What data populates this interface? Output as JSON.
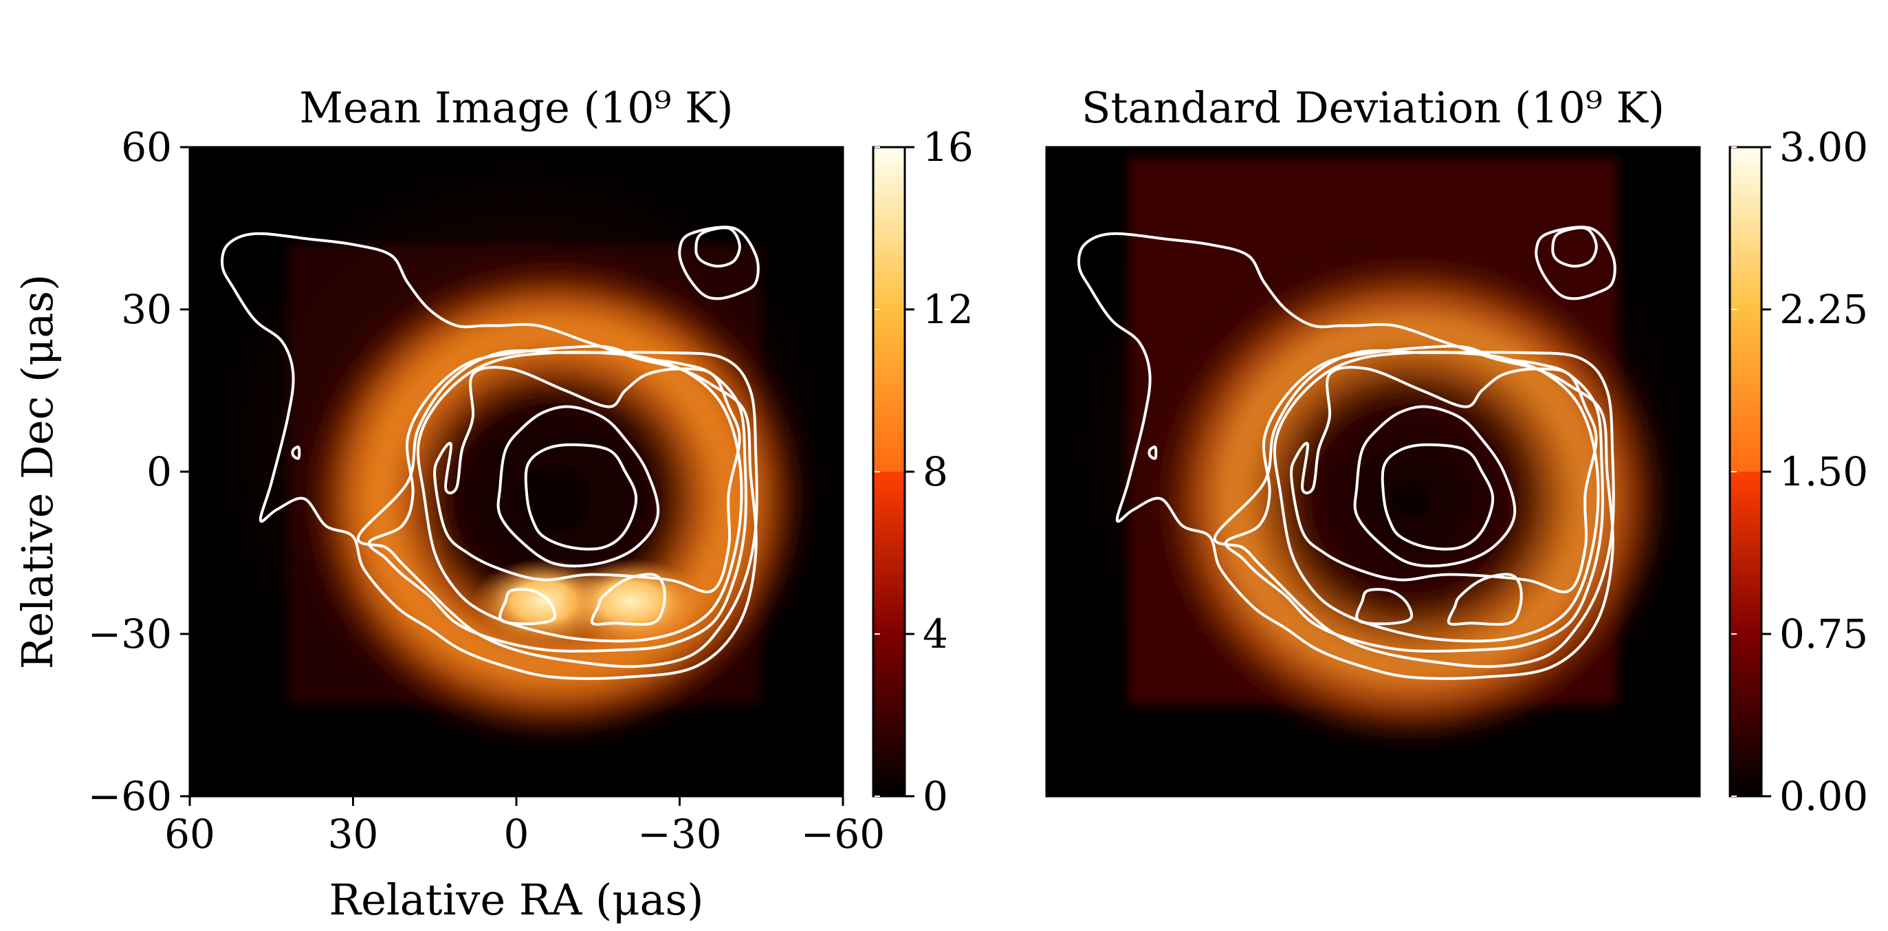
{
  "chart_data": [
    {
      "type": "heatmap",
      "title": "Mean Image (10⁹ K)",
      "xlabel": "Relative RA (μas)",
      "ylabel": "Relative Dec (μas)",
      "xlim": [
        60,
        -60
      ],
      "ylim": [
        -60,
        60
      ],
      "xticks": [
        60,
        30,
        0,
        -30,
        -60
      ],
      "yticks": [
        60,
        30,
        0,
        -30,
        -60
      ],
      "xtick_labels": [
        "60",
        "30",
        "0",
        "−30",
        "−60"
      ],
      "ytick_labels": [
        "60",
        "30",
        "0",
        "−30",
        "−60"
      ],
      "colorbar": {
        "range": [
          0,
          16
        ],
        "ticks": [
          0,
          4,
          8,
          12,
          16
        ],
        "tick_labels": [
          "0",
          "4",
          "8",
          "12",
          "16"
        ],
        "colormap": "afmhot"
      },
      "features": {
        "ring_center": [
          -7,
          -5
        ],
        "ring_radius": 29,
        "ring_peak": 12,
        "hotspots": [
          {
            "ra": -5,
            "dec": -24,
            "value": 15
          },
          {
            "ra": -21,
            "dec": -24,
            "value": 15.5
          }
        ],
        "source_region": {
          "ra": [
            42,
            -45
          ],
          "dec": [
            42,
            -43
          ]
        }
      },
      "contours": [
        {
          "level": 1,
          "points": [
            [
              -2,
              -5
            ],
            [
              -2,
              1
            ],
            [
              -5,
              4
            ],
            [
              -10,
              5
            ],
            [
              -17,
              4
            ],
            [
              -20,
              0
            ],
            [
              -22,
              -5
            ],
            [
              -20,
              -11
            ],
            [
              -16,
              -14
            ],
            [
              -10,
              -14
            ],
            [
              -5,
              -12
            ],
            [
              -3,
              -9
            ]
          ]
        },
        {
          "level": 2,
          "points": [
            [
              3,
              -3
            ],
            [
              2,
              4
            ],
            [
              -1,
              8
            ],
            [
              -5,
              11
            ],
            [
              -10,
              12
            ],
            [
              -16,
              10
            ],
            [
              -20,
              6
            ],
            [
              -24,
              0
            ],
            [
              -26,
              -8
            ],
            [
              -22,
              -14
            ],
            [
              -15,
              -17
            ],
            [
              -7,
              -17
            ],
            [
              -1,
              -13
            ],
            [
              3,
              -8
            ]
          ]
        },
        {
          "level": 3,
          "points": [
            [
              11,
              -3
            ],
            [
              10,
              4
            ],
            [
              8,
              10
            ],
            [
              8,
              18
            ],
            [
              1,
              19
            ],
            [
              -9,
              15
            ],
            [
              -17,
              12
            ],
            [
              -20,
              15
            ],
            [
              -24,
              18
            ],
            [
              -30,
              19
            ],
            [
              -36,
              18
            ],
            [
              -39,
              12
            ],
            [
              -41,
              6
            ],
            [
              -39,
              -4
            ],
            [
              -39,
              -14
            ],
            [
              -36,
              -22
            ],
            [
              -28,
              -20
            ],
            [
              -14,
              -19
            ],
            [
              -5,
              -20
            ],
            [
              3,
              -18
            ],
            [
              9,
              -15
            ],
            [
              13,
              -11
            ],
            [
              15,
              -1
            ],
            [
              14,
              3
            ],
            [
              12,
              5
            ],
            [
              13,
              -3
            ]
          ]
        },
        {
          "level": 4,
          "points": [
            [
              17,
              -4
            ],
            [
              18,
              5
            ],
            [
              15,
              12
            ],
            [
              9,
              18
            ],
            [
              2,
              21
            ],
            [
              -7,
              22
            ],
            [
              -15,
              22
            ],
            [
              -24,
              21
            ],
            [
              -32,
              18
            ],
            [
              -38,
              12
            ],
            [
              -41,
              2
            ],
            [
              -41,
              -10
            ],
            [
              -38,
              -22
            ],
            [
              -33,
              -28
            ],
            [
              -24,
              -31
            ],
            [
              -12,
              -31
            ],
            [
              -2,
              -29
            ],
            [
              6,
              -26
            ],
            [
              11,
              -22
            ],
            [
              15,
              -15
            ]
          ]
        },
        {
          "level": 5,
          "points": [
            [
              27,
              -13
            ],
            [
              21,
              -10
            ],
            [
              19,
              -4
            ],
            [
              20,
              6
            ],
            [
              16,
              14
            ],
            [
              9,
              20
            ],
            [
              0,
              22
            ],
            [
              -10,
              23
            ],
            [
              -17,
              23
            ],
            [
              -23,
              21
            ],
            [
              -30,
              20
            ],
            [
              -36,
              18
            ],
            [
              -41,
              12
            ],
            [
              -42,
              2
            ],
            [
              -42,
              -10
            ],
            [
              -40,
              -20
            ],
            [
              -36,
              -28
            ],
            [
              -28,
              -32
            ],
            [
              -18,
              -33
            ],
            [
              -6,
              -33
            ],
            [
              4,
              -31
            ],
            [
              11,
              -28
            ],
            [
              16,
              -23
            ],
            [
              21,
              -19
            ],
            [
              24,
              -16
            ]
          ]
        },
        {
          "level": 6,
          "points": [
            [
              29,
              -12
            ],
            [
              24,
              -14
            ],
            [
              21,
              -17
            ],
            [
              17,
              -21
            ],
            [
              12,
              -26
            ],
            [
              7,
              -30
            ],
            [
              0,
              -33
            ],
            [
              -10,
              -35
            ],
            [
              -22,
              -36
            ],
            [
              -32,
              -34
            ],
            [
              -38,
              -28
            ],
            [
              -42,
              -20
            ],
            [
              -44,
              -10
            ],
            [
              -44,
              3
            ],
            [
              -43,
              15
            ],
            [
              -38,
              21
            ],
            [
              -27,
              22
            ],
            [
              -10,
              22
            ],
            [
              3,
              22
            ],
            [
              12,
              17
            ],
            [
              18,
              8
            ],
            [
              20,
              -2
            ]
          ]
        },
        {
          "level": 7,
          "points": [
            [
              30,
              -12
            ],
            [
              35,
              -10
            ],
            [
              39,
              -5
            ],
            [
              44,
              -7
            ],
            [
              47,
              -9
            ],
            [
              45,
              -2
            ],
            [
              42,
              10
            ],
            [
              41,
              18
            ],
            [
              43,
              24
            ],
            [
              48,
              28
            ],
            [
              52,
              34
            ],
            [
              54,
              38
            ],
            [
              53,
              42
            ],
            [
              48,
              44
            ],
            [
              38,
              43
            ],
            [
              30,
              42
            ],
            [
              23,
              40
            ],
            [
              20,
              35
            ],
            [
              16,
              30
            ],
            [
              11,
              27
            ],
            [
              6,
              27
            ],
            [
              3,
              27
            ],
            [
              -4,
              27
            ],
            [
              -13,
              24
            ],
            [
              -22,
              21
            ],
            [
              -30,
              19
            ],
            [
              -36,
              16
            ],
            [
              -42,
              11
            ],
            [
              -43,
              0
            ],
            [
              -44,
              -15
            ],
            [
              -41,
              -28
            ],
            [
              -33,
              -36
            ],
            [
              -20,
              -38
            ],
            [
              -7,
              -38
            ],
            [
              2,
              -36
            ],
            [
              10,
              -33
            ],
            [
              16,
              -29
            ],
            [
              22,
              -25
            ],
            [
              28,
              -18
            ]
          ]
        },
        {
          "level": 8,
          "points": [
            [
              40,
              4.5
            ],
            [
              41,
              4
            ],
            [
              41,
              3
            ],
            [
              40,
              2.5
            ]
          ]
        },
        {
          "level": 9,
          "points": [
            [
              -32,
              44
            ],
            [
              -40,
              45
            ],
            [
              -44,
              40
            ],
            [
              -44,
              35
            ],
            [
              -41,
              33
            ],
            [
              -37,
              32
            ],
            [
              -34,
              33
            ],
            [
              -31,
              37
            ],
            [
              -30,
              41
            ]
          ]
        },
        {
          "level": 10,
          "points": [
            [
              -34,
              44
            ],
            [
              -39,
              45
            ],
            [
              -41,
              42
            ],
            [
              -40,
              39
            ],
            [
              -37,
              38
            ],
            [
              -34,
              39
            ],
            [
              -33,
              41
            ]
          ]
        },
        {
          "level": 11,
          "points": [
            [
              1,
              -22
            ],
            [
              -3,
              -22
            ],
            [
              -6,
              -24
            ],
            [
              -7,
              -27
            ],
            [
              -4,
              -28
            ],
            [
              1,
              -28
            ],
            [
              3,
              -27
            ],
            [
              2,
              -24
            ]
          ]
        },
        {
          "level": 12,
          "points": [
            [
              -16,
              -23
            ],
            [
              -20,
              -20
            ],
            [
              -25,
              -19
            ],
            [
              -27,
              -21
            ],
            [
              -27,
              -25
            ],
            [
              -25,
              -28
            ],
            [
              -18,
              -28
            ],
            [
              -14,
              -28
            ],
            [
              -15,
              -25
            ]
          ]
        }
      ]
    },
    {
      "type": "heatmap",
      "title": "Standard Deviation (10⁹ K)",
      "xlim": [
        60,
        -60
      ],
      "ylim": [
        -60,
        60
      ],
      "colorbar": {
        "range": [
          0,
          3
        ],
        "ticks": [
          0,
          0.75,
          1.5,
          2.25,
          3
        ],
        "tick_labels": [
          "0.00",
          "0.75",
          "1.50",
          "2.25",
          "3.00"
        ],
        "colormap": "afmhot"
      },
      "features": {
        "ring_center": [
          -7,
          -5
        ],
        "ring_radius": 29,
        "ring_peak": 1.9,
        "source_region": {
          "ra": [
            45,
            -45
          ],
          "dec": [
            58,
            -43
          ]
        }
      },
      "contours_shared_with_panel_1": true
    }
  ]
}
